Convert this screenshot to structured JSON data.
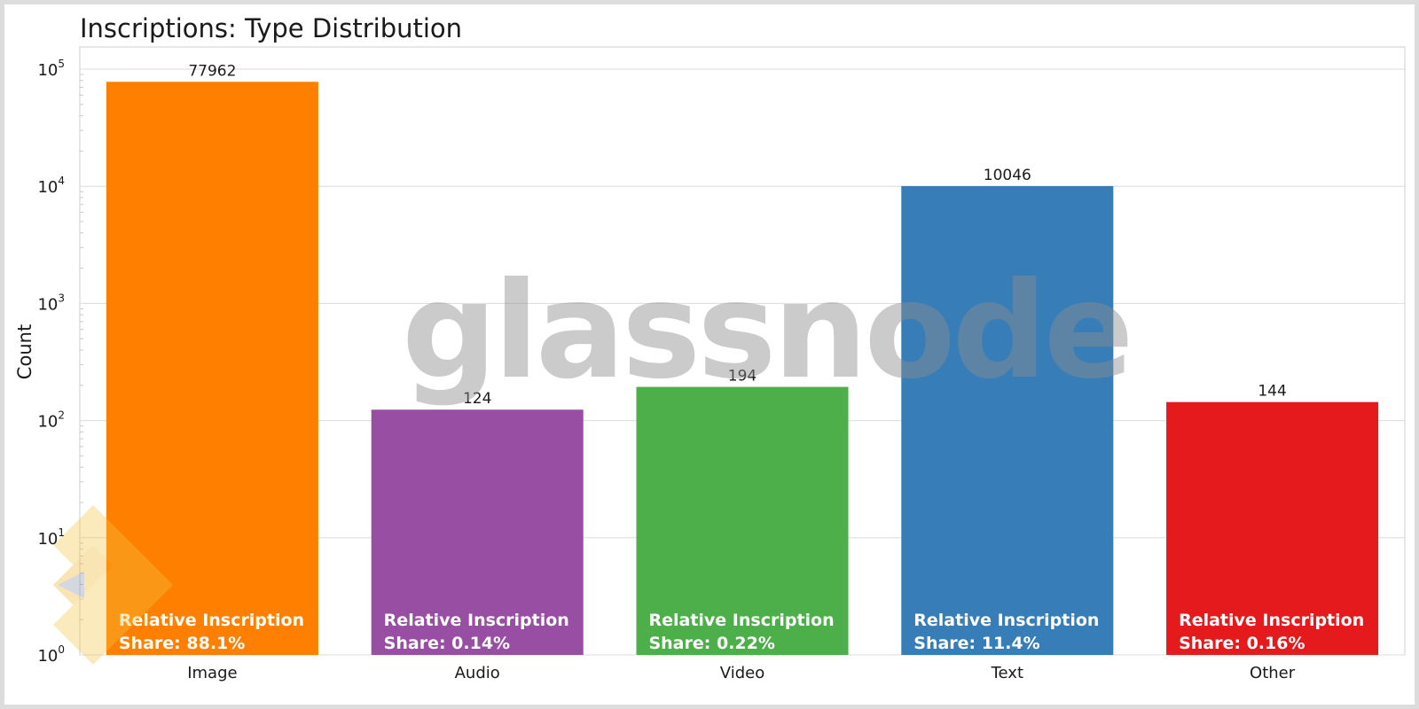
{
  "watermark": "glassnode",
  "share_prefix": "Relative Inscription",
  "chart_data": {
    "type": "bar",
    "title": "Inscriptions: Type Distribution",
    "xlabel": "",
    "ylabel": "Count",
    "yscale": "log",
    "ylim": [
      1,
      100000
    ],
    "yticks": [
      {
        "base": "10",
        "exp": "0",
        "value": 1
      },
      {
        "base": "10",
        "exp": "1",
        "value": 10
      },
      {
        "base": "10",
        "exp": "2",
        "value": 100
      },
      {
        "base": "10",
        "exp": "3",
        "value": 1000
      },
      {
        "base": "10",
        "exp": "4",
        "value": 10000
      },
      {
        "base": "10",
        "exp": "5",
        "value": 100000
      }
    ],
    "grid": true,
    "categories": [
      "Image",
      "Audio",
      "Video",
      "Text",
      "Other"
    ],
    "values": [
      77962,
      124,
      194,
      10046,
      144
    ],
    "value_labels": [
      "77962",
      "124",
      "194",
      "10046",
      "144"
    ],
    "share_labels": [
      "Share: 88.1%",
      "Share: 0.14%",
      "Share: 0.22%",
      "Share: 11.4%",
      "Share: 0.16%"
    ],
    "colors": [
      "#ff7f00",
      "#984ea3",
      "#4daf4a",
      "#377eb8",
      "#e41a1c"
    ]
  }
}
